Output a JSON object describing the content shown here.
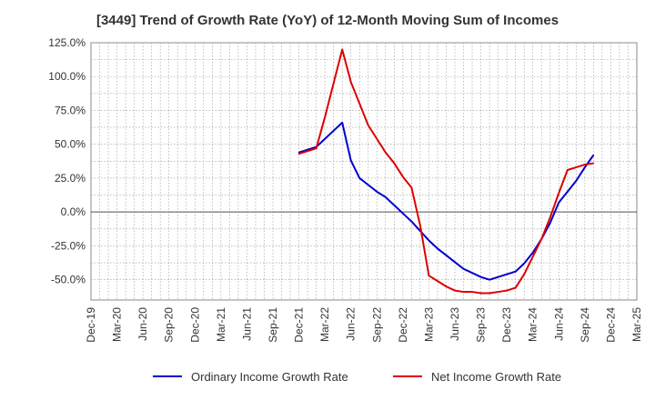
{
  "chart_data": {
    "type": "line",
    "title": "[3449]  Trend of Growth Rate (YoY) of 12-Month Moving Sum of Incomes",
    "xlabel": "",
    "ylabel": "",
    "ylim": [
      -65,
      125
    ],
    "y_ticks": [
      -50,
      -25,
      0,
      25,
      50,
      75,
      100,
      125
    ],
    "y_tick_labels": [
      "-50.0%",
      "-25.0%",
      "0.0%",
      "25.0%",
      "50.0%",
      "75.0%",
      "100.0%",
      "125.0%"
    ],
    "x_tick_labels": [
      "Dec-19",
      "Mar-20",
      "Jun-20",
      "Sep-20",
      "Dec-20",
      "Mar-21",
      "Jun-21",
      "Sep-21",
      "Dec-21",
      "Mar-22",
      "Jun-22",
      "Sep-22",
      "Dec-22",
      "Mar-23",
      "Jun-23",
      "Sep-23",
      "Dec-23",
      "Mar-24",
      "Jun-24",
      "Sep-24",
      "Dec-24",
      "Mar-25"
    ],
    "x_range_months": [
      0,
      63
    ],
    "grid": true,
    "legend_position": "bottom",
    "series": [
      {
        "name": "Ordinary Income Growth Rate",
        "color": "#0000cc",
        "x": [
          24,
          25,
          26,
          27,
          28,
          29,
          30,
          31,
          32,
          33,
          34,
          35,
          36,
          37,
          38,
          39,
          40,
          41,
          42,
          43,
          44,
          45,
          46,
          47,
          48,
          49,
          50,
          51,
          52,
          53,
          54,
          55,
          56,
          57,
          58,
          59,
          60
        ],
        "values": [
          44,
          46,
          48,
          54,
          60,
          66,
          38,
          25,
          20,
          15,
          11,
          5,
          -1,
          -7,
          -14,
          -21,
          -27,
          -32,
          -37,
          -42,
          -45,
          -48,
          -50,
          -48,
          -46,
          -44,
          -38,
          -30,
          -20,
          -8,
          7,
          15,
          23,
          33,
          42,
          null,
          null
        ]
      },
      {
        "name": "Net Income Growth Rate",
        "color": "#dd0000",
        "x": [
          24,
          25,
          26,
          27,
          28,
          29,
          30,
          31,
          32,
          33,
          34,
          35,
          36,
          37,
          38,
          39,
          40,
          41,
          42,
          43,
          44,
          45,
          46,
          47,
          48,
          49,
          50,
          51,
          52,
          53,
          54,
          55,
          56,
          57,
          58,
          59,
          60
        ],
        "values": [
          43,
          45,
          47,
          70,
          95,
          120,
          96,
          80,
          64,
          54,
          44,
          36,
          26,
          18,
          -10,
          -47,
          -51,
          -55,
          -58,
          -59,
          -59,
          -60,
          -60,
          -59,
          -58,
          -56,
          -46,
          -33,
          -20,
          -4,
          14,
          31,
          33,
          35,
          36,
          null,
          null
        ]
      }
    ]
  }
}
